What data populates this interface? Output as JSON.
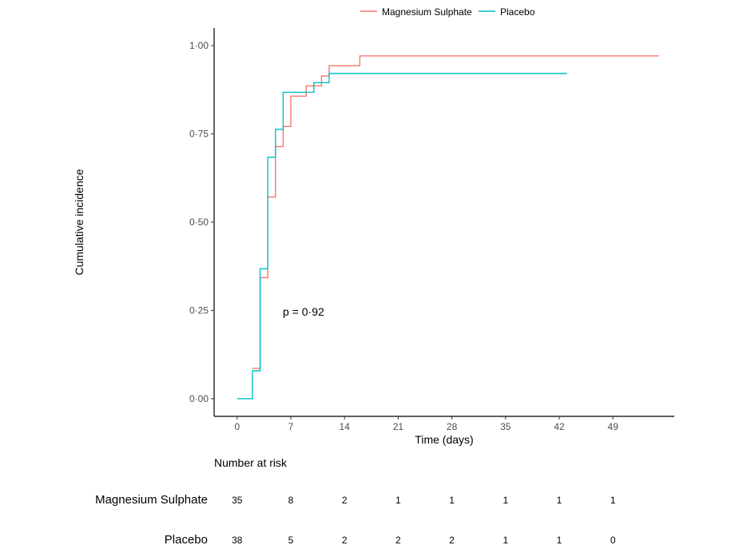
{
  "chart_data": {
    "type": "line",
    "step": true,
    "ylabel": "Cumulative incidence",
    "xlabel": "Time (days)",
    "xlim": [
      -3,
      57
    ],
    "ylim": [
      -0.05,
      1.05
    ],
    "xticks": [
      0,
      7,
      14,
      21,
      28,
      35,
      42,
      49
    ],
    "xtick_labels": [
      "0",
      "7",
      "14",
      "21",
      "28",
      "35",
      "42",
      "49"
    ],
    "yticks": [
      0,
      0.25,
      0.5,
      0.75,
      1.0
    ],
    "ytick_labels": [
      "0·00",
      "0·25",
      "0·50",
      "0·75",
      "1·00"
    ],
    "annotation": "p = 0·92",
    "annotation_pos": [
      6,
      0.24
    ],
    "legend_position": "top",
    "grid": false,
    "series": [
      {
        "name": "Magnesium Sulphate",
        "color": "#F8766D",
        "x": [
          2,
          3,
          4,
          5,
          6,
          7,
          9,
          10,
          11,
          12,
          16,
          55
        ],
        "y": [
          0.086,
          0.343,
          0.571,
          0.714,
          0.771,
          0.857,
          0.886,
          0.886,
          0.914,
          0.943,
          0.971,
          0.971
        ]
      },
      {
        "name": "Placebo",
        "color": "#00BFC4",
        "x": [
          0,
          2,
          3,
          4,
          5,
          6,
          9,
          10,
          12,
          43
        ],
        "y": [
          0,
          0.079,
          0.368,
          0.684,
          0.763,
          0.868,
          0.868,
          0.895,
          0.921,
          0.921
        ]
      }
    ]
  },
  "risk_table": {
    "title": "Number at risk",
    "times": [
      0,
      7,
      14,
      21,
      28,
      35,
      42,
      49
    ],
    "rows": [
      {
        "label": "Magnesium Sulphate",
        "values": [
          "35",
          "8",
          "2",
          "1",
          "1",
          "1",
          "1",
          "1"
        ]
      },
      {
        "label": "Placebo",
        "values": [
          "38",
          "5",
          "2",
          "2",
          "2",
          "1",
          "1",
          "0"
        ]
      }
    ]
  }
}
